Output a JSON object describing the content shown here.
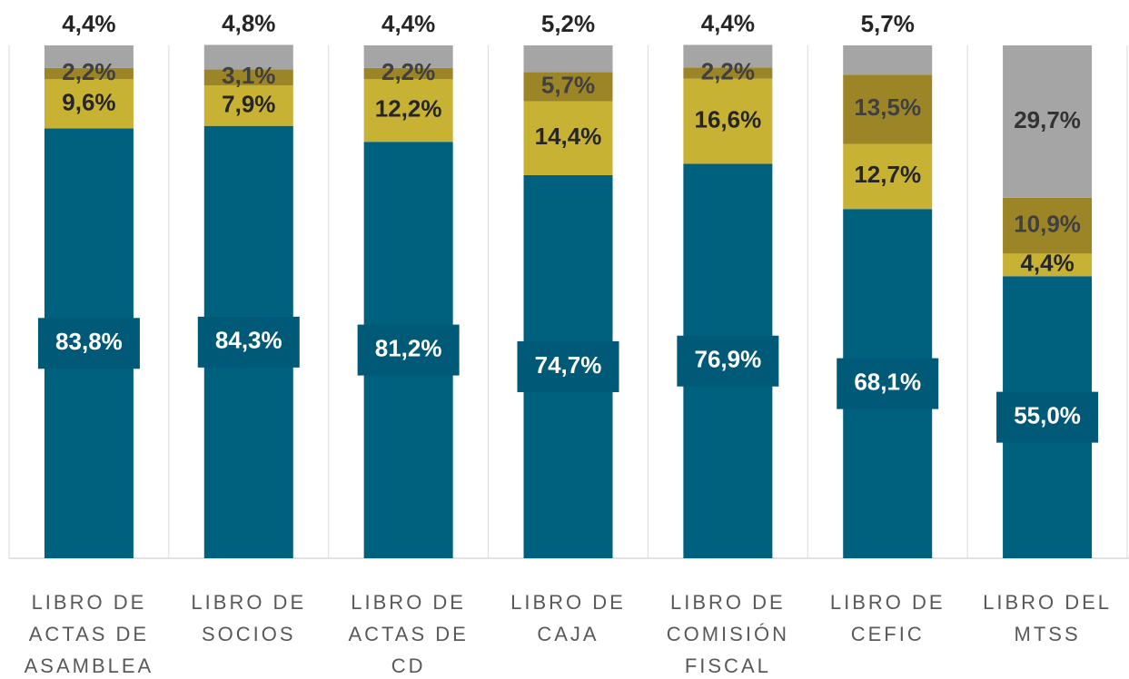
{
  "chart_data": {
    "type": "stacked_bar",
    "categories": [
      "LIBRO DE ACTAS DE ASAMBLEA",
      "LIBRO DE SOCIOS",
      "LIBRO DE ACTAS DE CD",
      "LIBRO DE CAJA",
      "LIBRO DE COMISIÓN FISCAL",
      "LIBRO DE CEFIC",
      "LIBRO DEL MTSS"
    ],
    "ylim": [
      0,
      100
    ],
    "series": [
      {
        "color": "#00617f",
        "values": [
          83.8,
          84.3,
          81.2,
          74.7,
          76.9,
          68.1,
          55.0
        ],
        "value_labels": [
          "83,8%",
          "84,3%",
          "81,2%",
          "74,7%",
          "76,9%",
          "68,1%",
          "55,0%"
        ]
      },
      {
        "color": "#c8b234",
        "values": [
          9.6,
          7.9,
          12.2,
          14.4,
          16.6,
          12.7,
          4.4
        ],
        "value_labels": [
          "9,6%",
          "7,9%",
          "12,2%",
          "14,4%",
          "16,6%",
          "12,7%",
          "4,4%"
        ]
      },
      {
        "color": "#9c8527",
        "values": [
          2.2,
          3.1,
          2.2,
          5.7,
          2.2,
          13.5,
          10.9
        ],
        "value_labels": [
          "2,2%",
          "3,1%",
          "2,2%",
          "5,7%",
          "2,2%",
          "13,5%",
          "10,9%"
        ]
      },
      {
        "color": "#a5a5a5",
        "values": [
          4.4,
          4.8,
          4.4,
          5.2,
          4.4,
          5.7,
          29.7
        ],
        "value_labels": [
          "4,4%",
          "4,8%",
          "4,4%",
          "5,2%",
          "4,4%",
          "5,7%",
          "29,7%"
        ]
      }
    ]
  }
}
